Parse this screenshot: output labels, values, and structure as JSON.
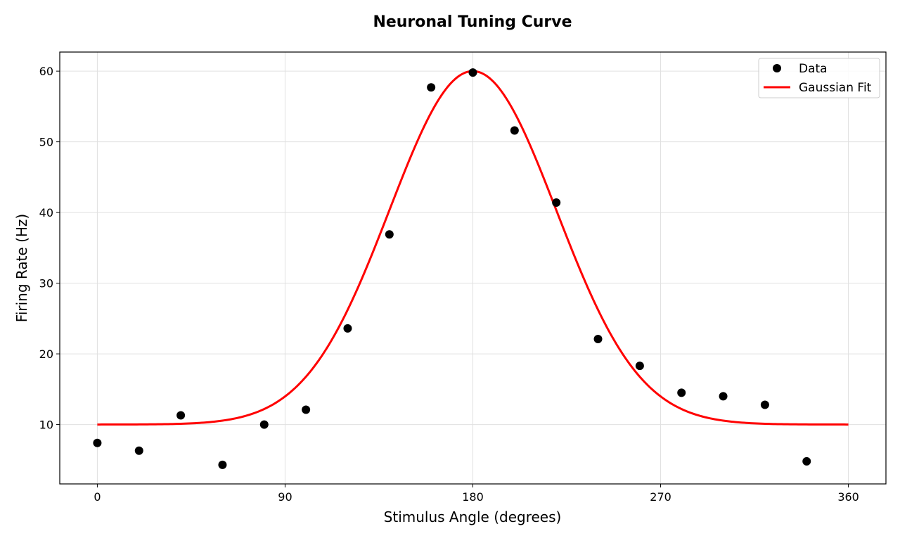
{
  "chart_data": {
    "type": "scatter",
    "title": "Neuronal Tuning Curve",
    "xlabel": "Stimulus Angle (degrees)",
    "ylabel": "Firing Rate (Hz)",
    "xlim": [
      -18,
      378
    ],
    "ylim": [
      1.6,
      62.7
    ],
    "xticks": [
      0,
      90,
      180,
      270,
      360
    ],
    "yticks": [
      10,
      20,
      30,
      40,
      50,
      60
    ],
    "grid": true,
    "legend_position": "top-right",
    "series": [
      {
        "name": "Data",
        "type": "scatter",
        "color": "#000000",
        "x": [
          0,
          20,
          40,
          60,
          80,
          100,
          120,
          140,
          160,
          180,
          200,
          220,
          240,
          260,
          280,
          300,
          320,
          340
        ],
        "y": [
          7.4,
          6.3,
          11.3,
          4.3,
          10.0,
          12.1,
          23.6,
          36.9,
          57.7,
          59.8,
          51.6,
          41.4,
          22.1,
          18.3,
          14.5,
          14.0,
          12.8,
          4.8
        ]
      },
      {
        "name": "Gaussian Fit",
        "type": "line",
        "color": "#ff0000",
        "model": {
          "baseline": 10,
          "amplitude": 50,
          "center": 180,
          "sigma": 40
        },
        "x_range": [
          0,
          360
        ]
      }
    ]
  }
}
